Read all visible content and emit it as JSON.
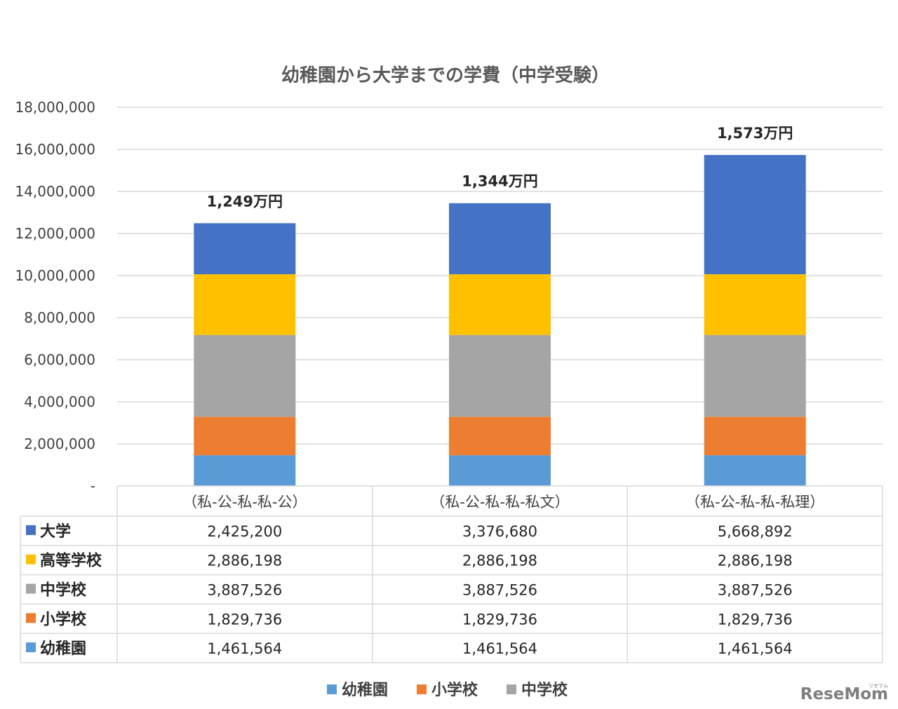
{
  "chart_data": {
    "type": "bar",
    "stacked": true,
    "title": "幼稚園から大学までの学費（中学受験）",
    "categories": [
      "（私-公-私-私-公）",
      "（私-公-私-私-私文）",
      "（私-公-私-私-私理）"
    ],
    "totals": [
      "1,249万円",
      "1,344万円",
      "1,573万円"
    ],
    "ylim": [
      0,
      18000000
    ],
    "yticks": [
      0,
      2000000,
      4000000,
      6000000,
      8000000,
      10000000,
      12000000,
      14000000,
      16000000,
      18000000
    ],
    "ytick_labels": [
      "-",
      "2,000,000",
      "4,000,000",
      "6,000,000",
      "8,000,000",
      "10,000,000",
      "12,000,000",
      "14,000,000",
      "16,000,000",
      "18,000,000"
    ],
    "grid": true,
    "series": [
      {
        "name": "幼稚園",
        "color": "#5B9BD5",
        "values": [
          1461564,
          1461564,
          1461564
        ],
        "labels": [
          "1,461,564",
          "1,461,564",
          "1,461,564"
        ]
      },
      {
        "name": "小学校",
        "color": "#ED7D31",
        "values": [
          1829736,
          1829736,
          1829736
        ],
        "labels": [
          "1,829,736",
          "1,829,736",
          "1,829,736"
        ]
      },
      {
        "name": "中学校",
        "color": "#A5A5A5",
        "values": [
          3887526,
          3887526,
          3887526
        ],
        "labels": [
          "3,887,526",
          "3,887,526",
          "3,887,526"
        ]
      },
      {
        "name": "高等学校",
        "color": "#FFC000",
        "values": [
          2886198,
          2886198,
          2886198
        ],
        "labels": [
          "2,886,198",
          "2,886,198",
          "2,886,198"
        ]
      },
      {
        "name": "大学",
        "color": "#4472C4",
        "values": [
          2425200,
          3376680,
          5668892
        ],
        "labels": [
          "2,425,200",
          "3,376,680",
          "5,668,892"
        ]
      }
    ],
    "table_row_order": [
      "大学",
      "高等学校",
      "中学校",
      "小学校",
      "幼稚園"
    ],
    "legend": {
      "placement": "bottom",
      "entries": [
        "幼稚園",
        "小学校",
        "中学校"
      ]
    }
  },
  "logo": {
    "text": "ReseMom",
    "kana": "リセマム"
  }
}
